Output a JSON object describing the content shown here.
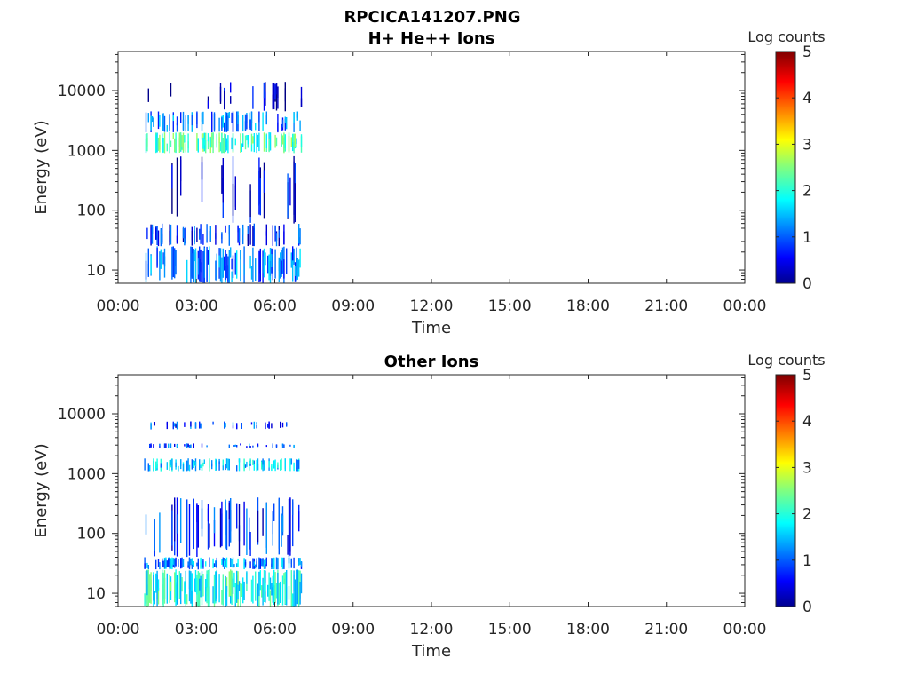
{
  "figure": {
    "title_line1": "RPCICA141207.PNG"
  },
  "colors": {
    "axis": "#262626",
    "background": "#ffffff",
    "jet_low": "#00008f",
    "jet_high": "#800000"
  },
  "chart_data": [
    {
      "type": "heatmap",
      "title": "H+ He++ Ions",
      "xlabel": "Time",
      "ylabel": "Energy (eV)",
      "x_tick_labels": [
        "00:00",
        "03:00",
        "06:00",
        "09:00",
        "12:00",
        "15:00",
        "18:00",
        "21:00",
        "00:00"
      ],
      "x_range_hours": [
        0,
        24
      ],
      "y_scale": "log",
      "y_range": [
        6,
        45000
      ],
      "y_ticks": [
        10,
        100,
        1000,
        10000
      ],
      "y_tick_labels": [
        "10",
        "100",
        "1000",
        "10000"
      ],
      "colorbar": {
        "label": "Log counts",
        "range": [
          0,
          5
        ],
        "ticks": [
          "0",
          "1",
          "2",
          "3",
          "4",
          "5"
        ],
        "colormap": "jet"
      },
      "data_coverage_hours": [
        1.0,
        7.0
      ],
      "bands": [
        {
          "e_low": 6,
          "e_high": 25,
          "level": 1.2,
          "density": 0.55
        },
        {
          "e_low": 25,
          "e_high": 60,
          "level": 0.8,
          "density": 0.3
        },
        {
          "e_low": 60,
          "e_high": 800,
          "level": 0.5,
          "density": 0.12
        },
        {
          "e_low": 900,
          "e_high": 2000,
          "level": 2.2,
          "density": 0.6
        },
        {
          "e_low": 2000,
          "e_high": 4500,
          "level": 1.2,
          "density": 0.45
        },
        {
          "e_low": 4500,
          "e_high": 14000,
          "level": 0.4,
          "density": 0.1
        }
      ]
    },
    {
      "type": "heatmap",
      "title": "Other Ions",
      "xlabel": "Time",
      "ylabel": "Energy (eV)",
      "x_tick_labels": [
        "00:00",
        "03:00",
        "06:00",
        "09:00",
        "12:00",
        "15:00",
        "18:00",
        "21:00",
        "00:00"
      ],
      "x_range_hours": [
        0,
        24
      ],
      "y_scale": "log",
      "y_range": [
        6,
        45000
      ],
      "y_ticks": [
        10,
        100,
        1000,
        10000
      ],
      "y_tick_labels": [
        "10",
        "100",
        "1000",
        "10000"
      ],
      "colorbar": {
        "label": "Log counts",
        "range": [
          0,
          5
        ],
        "ticks": [
          "0",
          "1",
          "2",
          "3",
          "4",
          "5"
        ],
        "colormap": "jet"
      },
      "data_coverage_hours": [
        1.0,
        7.0
      ],
      "bands": [
        {
          "e_low": 6,
          "e_high": 25,
          "level": 2.0,
          "density": 0.8
        },
        {
          "e_low": 25,
          "e_high": 40,
          "level": 1.3,
          "density": 0.6
        },
        {
          "e_low": 40,
          "e_high": 400,
          "level": 0.8,
          "density": 0.35
        },
        {
          "e_low": 1100,
          "e_high": 1800,
          "level": 1.6,
          "density": 0.5
        },
        {
          "e_low": 2700,
          "e_high": 3200,
          "level": 1.0,
          "density": 0.3
        },
        {
          "e_low": 5500,
          "e_high": 7500,
          "level": 0.9,
          "density": 0.25
        }
      ]
    }
  ]
}
